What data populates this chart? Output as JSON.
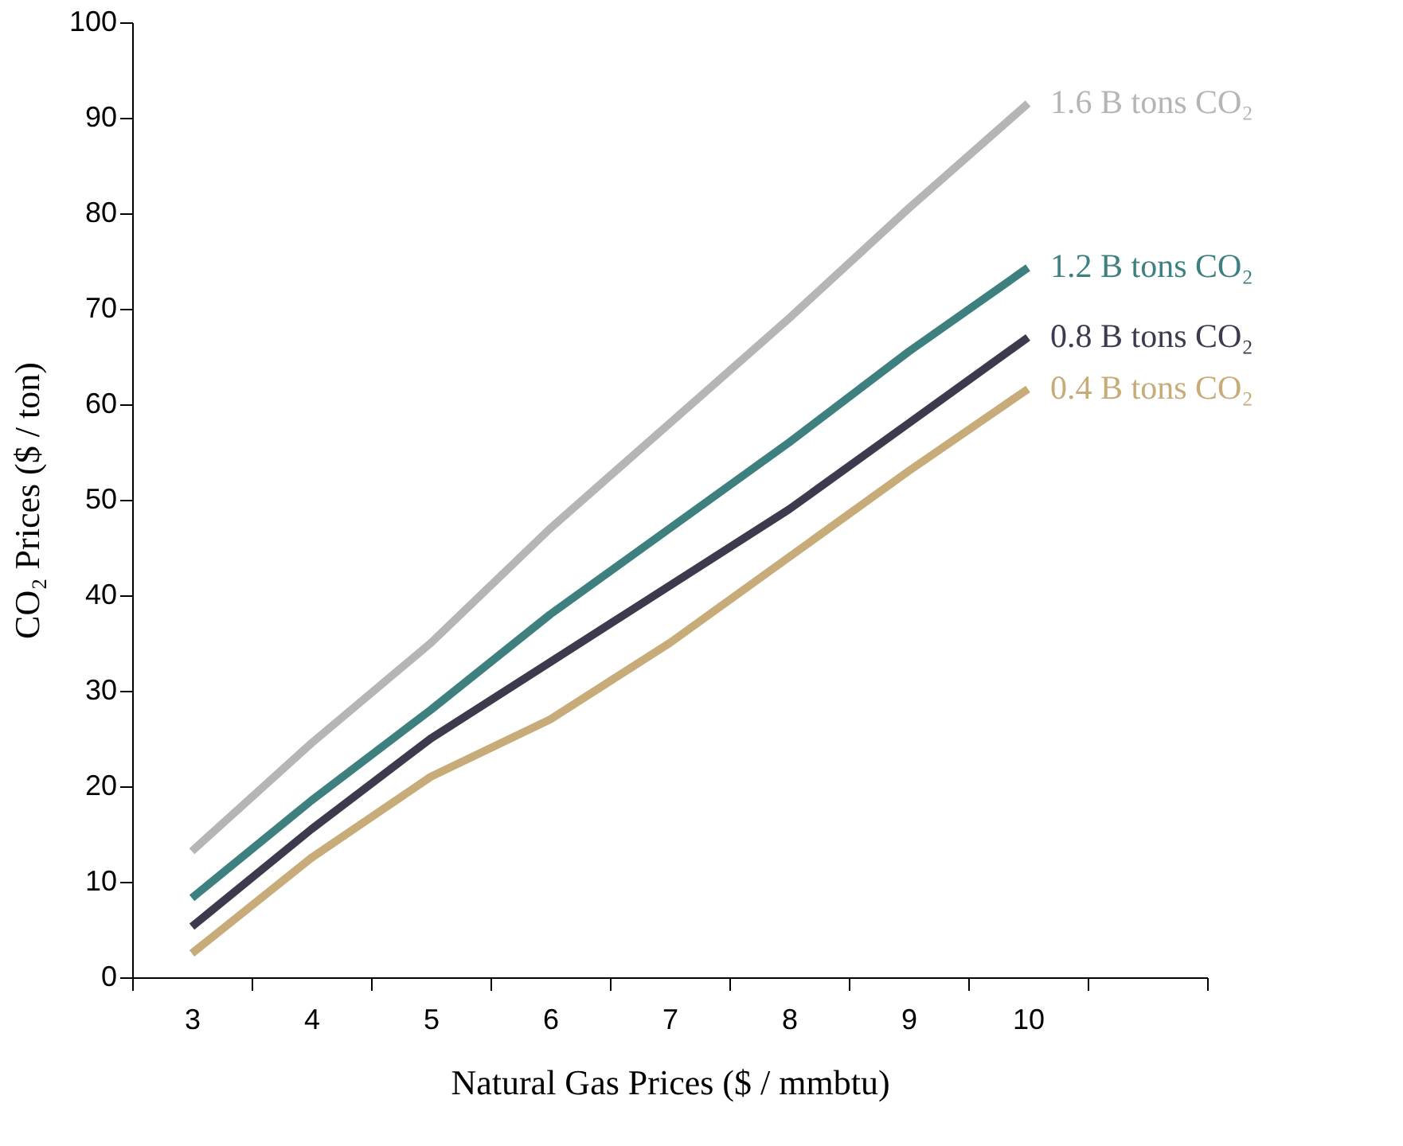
{
  "chart_data": {
    "type": "line",
    "xlabel": "Natural Gas Prices ($ / mmbtu)",
    "ylabel": "CO₂ Prices ($ / ton)",
    "categories": [
      "3",
      "4",
      "5",
      "6",
      "7",
      "8",
      "9",
      "10",
      null
    ],
    "ylim": [
      0,
      100
    ],
    "yticks": [
      0,
      10,
      20,
      30,
      40,
      50,
      60,
      70,
      80,
      90,
      100
    ],
    "series": [
      {
        "name": "1.6 B tons CO₂",
        "color": "#b5b5b5",
        "values": [
          13.2,
          24.5,
          35,
          47,
          58,
          69,
          80.5,
          91.5,
          null
        ]
      },
      {
        "name": "1.2 B tons CO₂",
        "color": "#3e7f7f",
        "values": [
          8.3,
          18.5,
          28,
          38,
          47,
          56,
          65.5,
          74.3,
          null
        ]
      },
      {
        "name": "0.8 B tons CO₂",
        "color": "#3d3a4e",
        "values": [
          5.3,
          15.5,
          25,
          33,
          41,
          49,
          58,
          67,
          null
        ]
      },
      {
        "name": "0.4 B tons CO₂",
        "color": "#c7ab78",
        "values": [
          2.5,
          12.5,
          21,
          27,
          35,
          44,
          53,
          61.6,
          null
        ]
      }
    ]
  }
}
